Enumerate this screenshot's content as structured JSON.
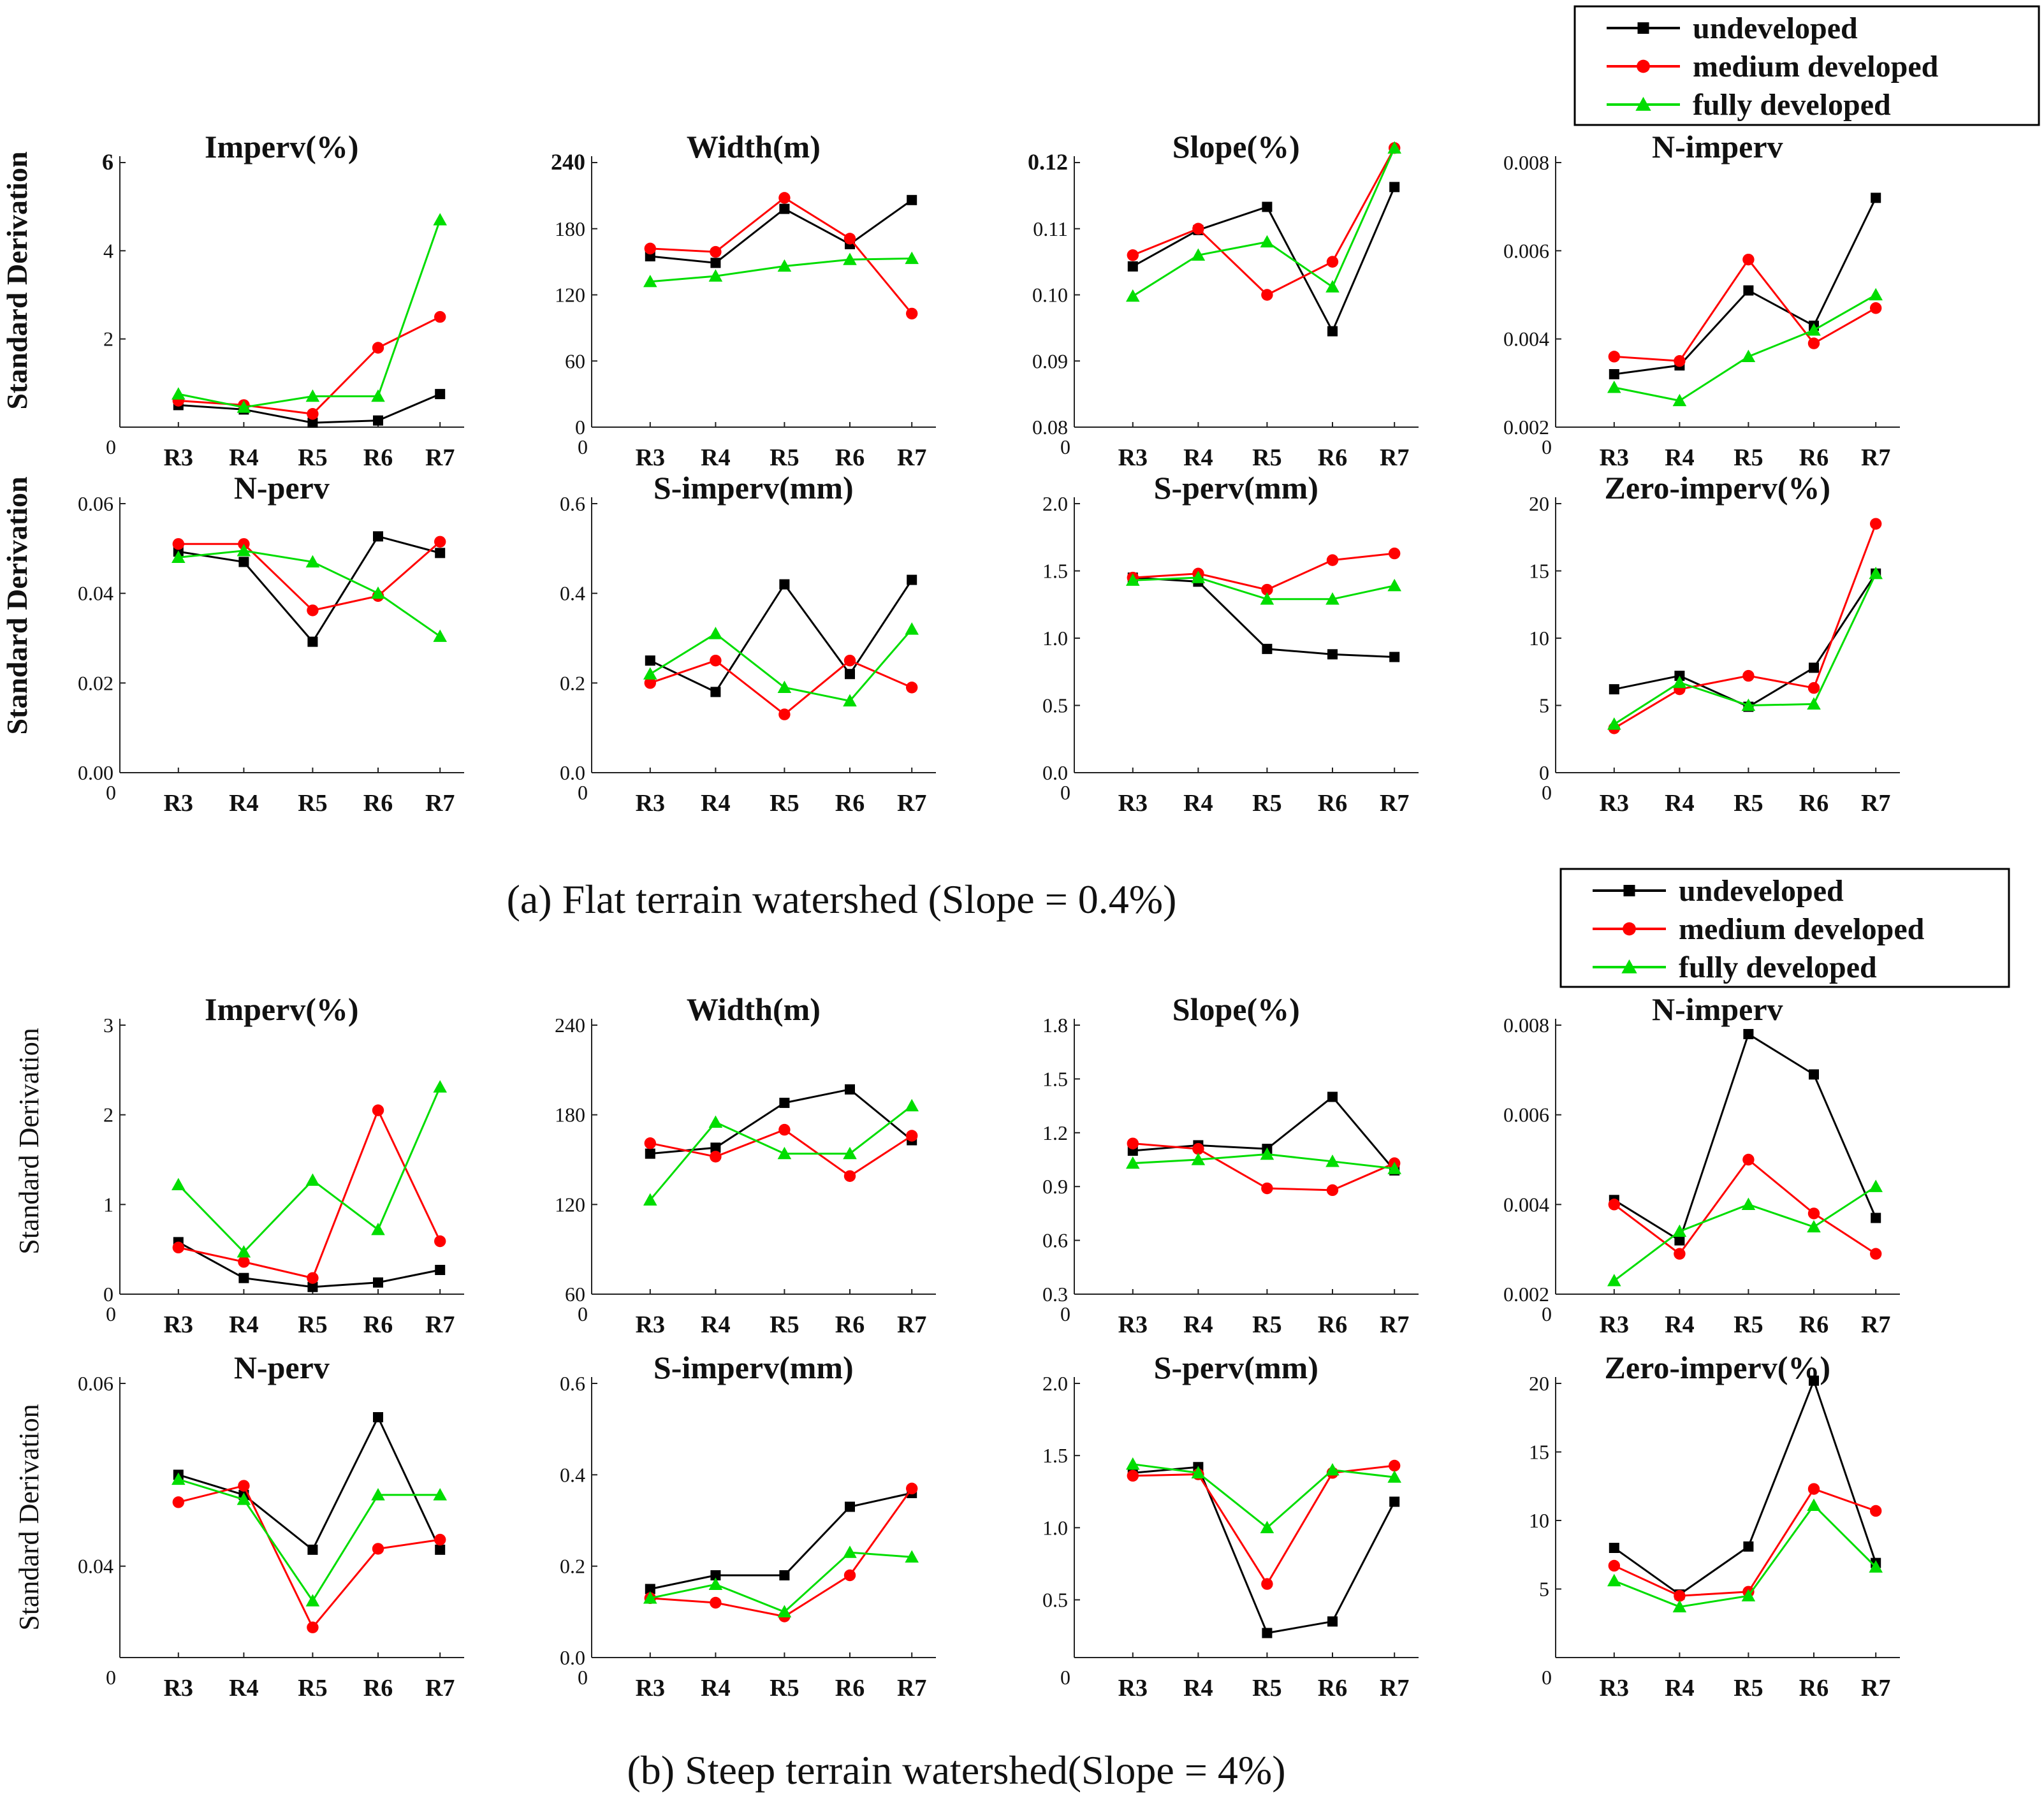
{
  "colors": {
    "undeveloped": "#000000",
    "medium developed": "#ff0000",
    "fully developed": "#00dd00"
  },
  "legend": [
    {
      "name": "undeveloped",
      "color": "#000000",
      "marker": "square"
    },
    {
      "name": "medium developed",
      "color": "#ff0000",
      "marker": "circle"
    },
    {
      "name": "fully developed",
      "color": "#00dd00",
      "marker": "triangle"
    }
  ],
  "captions": {
    "a": "(a) Flat terrain watershed (Slope = 0.4%)",
    "b": "(b) Steep terrain watershed(Slope = 4%)"
  },
  "y_axis_label": "Standard Derivation",
  "chart_data": [
    {
      "panel": "a",
      "type": "line",
      "title": "Imperv(%)",
      "categories": [
        "R3",
        "R4",
        "R5",
        "R6",
        "R7"
      ],
      "ylim": [
        0,
        6
      ],
      "yticks": [
        "2",
        "4",
        "6"
      ],
      "series": [
        {
          "name": "undeveloped",
          "values": [
            0.5,
            0.4,
            0.1,
            0.15,
            0.75
          ]
        },
        {
          "name": "medium developed",
          "values": [
            0.6,
            0.5,
            0.3,
            1.8,
            2.5
          ]
        },
        {
          "name": "fully developed",
          "values": [
            0.75,
            0.45,
            0.7,
            0.7,
            4.7
          ]
        }
      ]
    },
    {
      "panel": "a",
      "type": "line",
      "title": "Width(m)",
      "categories": [
        "R3",
        "R4",
        "R5",
        "R6",
        "R7"
      ],
      "ylim": [
        0,
        240
      ],
      "yticks": [
        "0",
        "60",
        "120",
        "180",
        "240"
      ],
      "series": [
        {
          "name": "undeveloped",
          "values": [
            155,
            149,
            198,
            166,
            206
          ]
        },
        {
          "name": "medium developed",
          "values": [
            162,
            159,
            208,
            171,
            103
          ]
        },
        {
          "name": "fully developed",
          "values": [
            132,
            137,
            146,
            152,
            153
          ]
        }
      ]
    },
    {
      "panel": "a",
      "type": "line",
      "title": "Slope(%)",
      "categories": [
        "R3",
        "R4",
        "R5",
        "R6",
        "R7"
      ],
      "ylim": [
        0.08,
        0.12
      ],
      "yticks": [
        "0.08",
        "0.09",
        "0.10",
        "0.11",
        "0.12"
      ],
      "series": [
        {
          "name": "undeveloped",
          "values": [
            0.1043,
            0.1098,
            0.1133,
            0.0945,
            0.1163
          ]
        },
        {
          "name": "medium developed",
          "values": [
            0.106,
            0.11,
            0.1,
            0.105,
            0.1222
          ]
        },
        {
          "name": "fully developed",
          "values": [
            0.0998,
            0.106,
            0.108,
            0.1012,
            0.1222
          ]
        }
      ]
    },
    {
      "panel": "a",
      "type": "line",
      "title": "N-imperv",
      "categories": [
        "R3",
        "R4",
        "R5",
        "R6",
        "R7"
      ],
      "ylim": [
        0.002,
        0.008
      ],
      "yticks": [
        "0.002",
        "0.004",
        "0.006",
        "0.008"
      ],
      "series": [
        {
          "name": "undeveloped",
          "values": [
            0.0032,
            0.0034,
            0.0051,
            0.0043,
            0.0072
          ]
        },
        {
          "name": "medium developed",
          "values": [
            0.0036,
            0.0035,
            0.0058,
            0.0039,
            0.0047
          ]
        },
        {
          "name": "fully developed",
          "values": [
            0.0029,
            0.0026,
            0.0036,
            0.0042,
            0.005
          ]
        }
      ]
    },
    {
      "panel": "a",
      "type": "line",
      "title": "N-perv",
      "categories": [
        "R3",
        "R4",
        "R5",
        "R6",
        "R7"
      ],
      "ylim": [
        0,
        0.06
      ],
      "yticks": [
        "0.00",
        "0.02",
        "0.04",
        "0.06"
      ],
      "series": [
        {
          "name": "undeveloped",
          "values": [
            0.0493,
            0.047,
            0.0292,
            0.0527,
            0.049
          ]
        },
        {
          "name": "medium developed",
          "values": [
            0.051,
            0.051,
            0.0362,
            0.0394,
            0.0515
          ]
        },
        {
          "name": "fully developed",
          "values": [
            0.048,
            0.0495,
            0.047,
            0.04,
            0.0304
          ]
        }
      ]
    },
    {
      "panel": "a",
      "type": "line",
      "title": "S-imperv(mm)",
      "categories": [
        "R3",
        "R4",
        "R5",
        "R6",
        "R7"
      ],
      "ylim": [
        0,
        0.6
      ],
      "yticks": [
        "0.0",
        "0.2",
        "0.4",
        "0.6"
      ],
      "series": [
        {
          "name": "undeveloped",
          "values": [
            0.25,
            0.18,
            0.42,
            0.22,
            0.43
          ]
        },
        {
          "name": "medium developed",
          "values": [
            0.2,
            0.25,
            0.13,
            0.25,
            0.19
          ]
        },
        {
          "name": "fully developed",
          "values": [
            0.22,
            0.31,
            0.19,
            0.16,
            0.32
          ]
        }
      ]
    },
    {
      "panel": "a",
      "type": "line",
      "title": "S-perv(mm)",
      "categories": [
        "R3",
        "R4",
        "R5",
        "R6",
        "R7"
      ],
      "ylim": [
        0,
        2
      ],
      "yticks": [
        "0.0",
        "0.5",
        "1.0",
        "1.5",
        "2.0"
      ],
      "series": [
        {
          "name": "undeveloped",
          "values": [
            1.45,
            1.42,
            0.92,
            0.88,
            0.86
          ]
        },
        {
          "name": "medium developed",
          "values": [
            1.45,
            1.48,
            1.36,
            1.58,
            1.63
          ]
        },
        {
          "name": "fully developed",
          "values": [
            1.43,
            1.45,
            1.29,
            1.29,
            1.39
          ]
        }
      ]
    },
    {
      "panel": "a",
      "type": "line",
      "title": "Zero-imperv(%)",
      "categories": [
        "R3",
        "R4",
        "R5",
        "R6",
        "R7"
      ],
      "ylim": [
        0,
        20
      ],
      "yticks": [
        "0",
        "5",
        "10",
        "15",
        "20"
      ],
      "series": [
        {
          "name": "undeveloped",
          "values": [
            6.2,
            7.2,
            4.9,
            7.8,
            14.8
          ]
        },
        {
          "name": "medium developed",
          "values": [
            3.3,
            6.2,
            7.2,
            6.3,
            18.5
          ]
        },
        {
          "name": "fully developed",
          "values": [
            3.6,
            6.7,
            5.0,
            5.1,
            14.8
          ]
        }
      ]
    },
    {
      "panel": "b",
      "type": "line",
      "title": "Imperv(%)",
      "categories": [
        "R3",
        "R4",
        "R5",
        "R6",
        "R7"
      ],
      "ylim": [
        0,
        3
      ],
      "yticks": [
        "0",
        "1",
        "2",
        "3"
      ],
      "series": [
        {
          "name": "undeveloped",
          "values": [
            0.58,
            0.18,
            0.08,
            0.13,
            0.27
          ]
        },
        {
          "name": "medium developed",
          "values": [
            0.52,
            0.36,
            0.18,
            2.05,
            0.59
          ]
        },
        {
          "name": "fully developed",
          "values": [
            1.22,
            0.47,
            1.27,
            0.72,
            2.31
          ]
        }
      ]
    },
    {
      "panel": "b",
      "type": "line",
      "title": "Width(m)",
      "categories": [
        "R3",
        "R4",
        "R5",
        "R6",
        "R7"
      ],
      "ylim": [
        60,
        240
      ],
      "yticks": [
        "60",
        "120",
        "180",
        "240"
      ],
      "series": [
        {
          "name": "undeveloped",
          "values": [
            154,
            158,
            188,
            197,
            163
          ]
        },
        {
          "name": "medium developed",
          "values": [
            161,
            152,
            170,
            139,
            166
          ]
        },
        {
          "name": "fully developed",
          "values": [
            123,
            175,
            154,
            154,
            186
          ]
        }
      ]
    },
    {
      "panel": "b",
      "type": "line",
      "title": "Slope(%)",
      "categories": [
        "R3",
        "R4",
        "R5",
        "R6",
        "R7"
      ],
      "ylim": [
        0.3,
        1.8
      ],
      "yticks": [
        "0.3",
        "0.6",
        "0.9",
        "1.2",
        "1.5",
        "1.8"
      ],
      "series": [
        {
          "name": "undeveloped",
          "values": [
            1.1,
            1.13,
            1.11,
            1.4,
            0.99
          ]
        },
        {
          "name": "medium developed",
          "values": [
            1.14,
            1.11,
            0.89,
            0.88,
            1.03
          ]
        },
        {
          "name": "fully developed",
          "values": [
            1.03,
            1.05,
            1.08,
            1.04,
            1.0
          ]
        }
      ]
    },
    {
      "panel": "b",
      "type": "line",
      "title": "N-imperv",
      "categories": [
        "R3",
        "R4",
        "R5",
        "R6",
        "R7"
      ],
      "ylim": [
        0.002,
        0.008
      ],
      "yticks": [
        "0.002",
        "0.004",
        "0.006",
        "0.008"
      ],
      "series": [
        {
          "name": "undeveloped",
          "values": [
            0.0041,
            0.0032,
            0.0078,
            0.0069,
            0.0037
          ]
        },
        {
          "name": "medium developed",
          "values": [
            0.004,
            0.0029,
            0.005,
            0.0038,
            0.0029
          ]
        },
        {
          "name": "fully developed",
          "values": [
            0.0023,
            0.0034,
            0.004,
            0.0035,
            0.0044
          ]
        }
      ]
    },
    {
      "panel": "b",
      "type": "line",
      "title": "N-perv",
      "categories": [
        "R3",
        "R4",
        "R5",
        "R6",
        "R7"
      ],
      "ylim": [
        0.03,
        0.06
      ],
      "yticks": [
        "0.04",
        "0.06"
      ],
      "series": [
        {
          "name": "undeveloped",
          "values": [
            0.05,
            0.0478,
            0.0418,
            0.0563,
            0.0418
          ]
        },
        {
          "name": "medium developed",
          "values": [
            0.047,
            0.0488,
            0.0333,
            0.0419,
            0.0429
          ]
        },
        {
          "name": "fully developed",
          "values": [
            0.0495,
            0.0473,
            0.0362,
            0.0478,
            0.0478
          ]
        }
      ]
    },
    {
      "panel": "b",
      "type": "line",
      "title": "S-imperv(mm)",
      "categories": [
        "R3",
        "R4",
        "R5",
        "R6",
        "R7"
      ],
      "ylim": [
        0,
        0.6
      ],
      "yticks": [
        "0.0",
        "0.2",
        "0.4",
        "0.6"
      ],
      "series": [
        {
          "name": "undeveloped",
          "values": [
            0.15,
            0.18,
            0.18,
            0.33,
            0.36
          ]
        },
        {
          "name": "medium developed",
          "values": [
            0.13,
            0.12,
            0.09,
            0.18,
            0.37
          ]
        },
        {
          "name": "fully developed",
          "values": [
            0.13,
            0.16,
            0.1,
            0.23,
            0.22
          ]
        }
      ]
    },
    {
      "panel": "b",
      "type": "line",
      "title": "S-perv(mm)",
      "categories": [
        "R3",
        "R4",
        "R5",
        "R6",
        "R7"
      ],
      "ylim": [
        0.1,
        2.0
      ],
      "yticks": [
        "0.5",
        "1.0",
        "1.5",
        "2.0"
      ],
      "series": [
        {
          "name": "undeveloped",
          "values": [
            1.38,
            1.42,
            0.27,
            0.35,
            1.18
          ]
        },
        {
          "name": "medium developed",
          "values": [
            1.36,
            1.37,
            0.61,
            1.38,
            1.43
          ]
        },
        {
          "name": "fully developed",
          "values": [
            1.44,
            1.38,
            1.0,
            1.4,
            1.35
          ]
        }
      ]
    },
    {
      "panel": "b",
      "type": "line",
      "title": "Zero-imperv(%)",
      "categories": [
        "R3",
        "R4",
        "R5",
        "R6",
        "R7"
      ],
      "ylim": [
        0,
        20
      ],
      "yticks": [
        "5",
        "10",
        "15",
        "20"
      ],
      "series": [
        {
          "name": "undeveloped",
          "values": [
            8.0,
            4.6,
            8.1,
            20.2,
            6.9
          ]
        },
        {
          "name": "medium developed",
          "values": [
            6.7,
            4.5,
            4.8,
            12.3,
            10.7
          ]
        },
        {
          "name": "fully developed",
          "values": [
            5.6,
            3.7,
            4.5,
            11.1,
            6.6
          ]
        }
      ]
    }
  ]
}
